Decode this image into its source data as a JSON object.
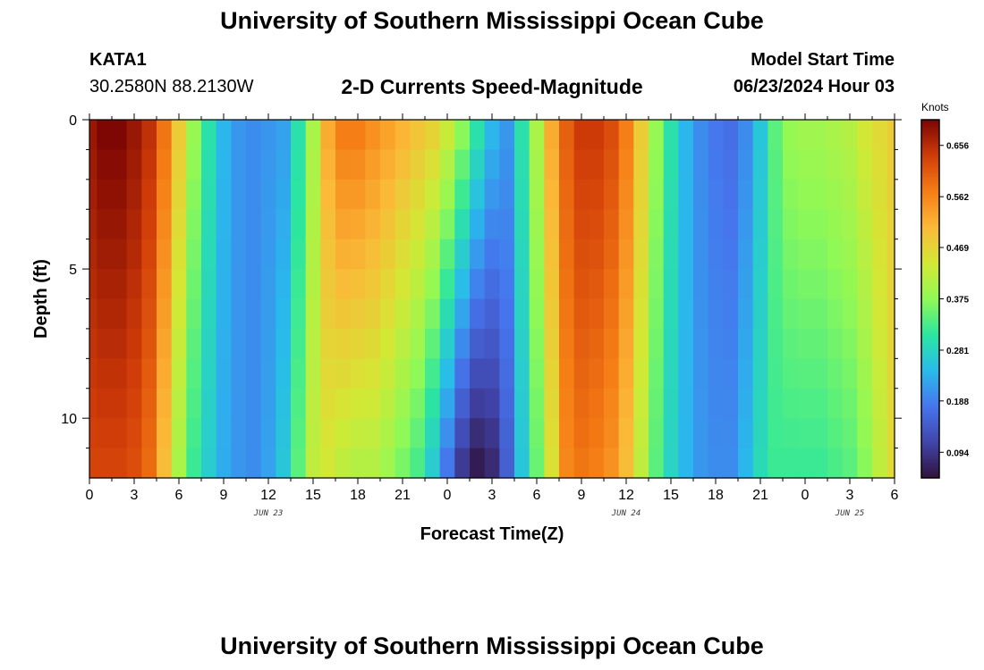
{
  "header": {
    "title": "University of Southern Mississippi Ocean Cube",
    "station": "KATA1",
    "coords": "30.2580N  88.2130W",
    "plot_title": "2-D Currents Speed-Magnitude",
    "start_label": "Model Start Time",
    "start_value": "06/23/2024 Hour 03"
  },
  "footer": {
    "title": "University of Southern Mississippi Ocean Cube"
  },
  "chart_data": {
    "type": "heatmap",
    "title": "2-D Currents Speed-Magnitude",
    "xlabel": "Forecast Time(Z)",
    "ylabel": "Depth (ft)",
    "colorbar_label": "Knots",
    "x_tick_labels": [
      "0",
      "3",
      "6",
      "9",
      "12",
      "15",
      "18",
      "21",
      "0",
      "3",
      "6",
      "9",
      "12",
      "15",
      "18",
      "21",
      "0",
      "3",
      "6"
    ],
    "x_date_labels": [
      {
        "label": "JUN 23",
        "hour": 12
      },
      {
        "label": "JUN 24",
        "hour": 36
      },
      {
        "label": "JUN 25",
        "hour": 51
      }
    ],
    "xlim_hours": [
      0,
      54
    ],
    "ylim_ft": [
      0,
      12
    ],
    "y_tick_labels": [
      "0",
      "5",
      "10"
    ],
    "y_ticks": [
      0,
      5,
      10
    ],
    "colorbar_ticks": [
      0.094,
      0.188,
      0.281,
      0.375,
      0.469,
      0.562,
      0.656
    ],
    "colorbar_range": [
      0.047,
      0.703
    ],
    "hours": [
      0,
      1,
      2,
      3,
      4,
      5,
      6,
      7,
      8,
      9,
      10,
      11,
      12,
      13,
      14,
      15,
      16,
      17,
      18,
      19,
      20,
      21,
      22,
      23,
      24,
      25,
      26,
      27,
      28,
      29,
      30,
      31,
      32,
      33,
      34,
      35,
      36,
      37,
      38,
      39,
      40,
      41,
      42,
      43,
      44,
      45,
      46,
      47,
      48,
      49,
      50,
      51,
      52,
      53,
      54
    ],
    "surface_speed": [
      0.68,
      0.7,
      0.7,
      0.68,
      0.65,
      0.58,
      0.48,
      0.38,
      0.3,
      0.24,
      0.21,
      0.2,
      0.21,
      0.22,
      0.3,
      0.4,
      0.52,
      0.57,
      0.57,
      0.55,
      0.53,
      0.51,
      0.49,
      0.47,
      0.43,
      0.37,
      0.3,
      0.24,
      0.21,
      0.3,
      0.4,
      0.52,
      0.6,
      0.64,
      0.64,
      0.62,
      0.57,
      0.48,
      0.38,
      0.3,
      0.24,
      0.2,
      0.18,
      0.17,
      0.2,
      0.26,
      0.34,
      0.38,
      0.39,
      0.39,
      0.4,
      0.41,
      0.44,
      0.46,
      0.48
    ],
    "bottom_speed": [
      0.63,
      0.63,
      0.63,
      0.62,
      0.59,
      0.5,
      0.4,
      0.32,
      0.27,
      0.23,
      0.21,
      0.2,
      0.22,
      0.26,
      0.34,
      0.42,
      0.44,
      0.42,
      0.41,
      0.41,
      0.39,
      0.36,
      0.33,
      0.27,
      0.18,
      0.1,
      0.06,
      0.08,
      0.15,
      0.26,
      0.35,
      0.45,
      0.56,
      0.58,
      0.57,
      0.55,
      0.5,
      0.42,
      0.34,
      0.28,
      0.24,
      0.21,
      0.2,
      0.2,
      0.24,
      0.29,
      0.32,
      0.32,
      0.32,
      0.32,
      0.33,
      0.34,
      0.37,
      0.42,
      0.46
    ],
    "depth_levels": 12
  }
}
